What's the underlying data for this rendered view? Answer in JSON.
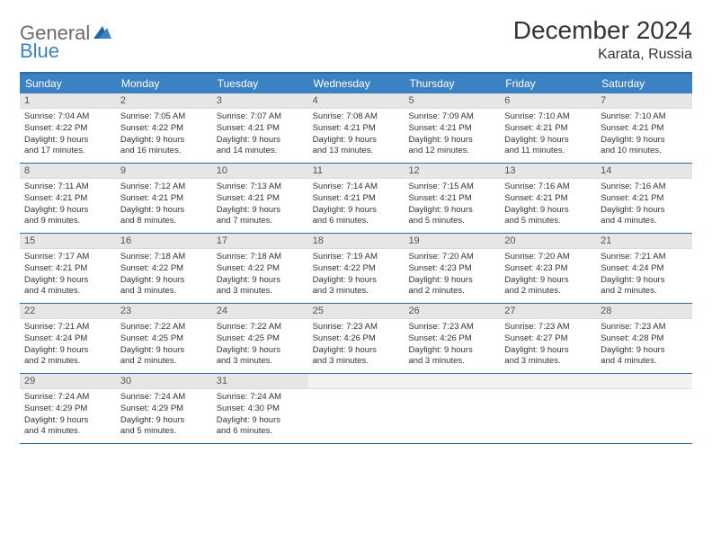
{
  "logo": {
    "text1": "General",
    "text2": "Blue"
  },
  "title": "December 2024",
  "location": "Karata, Russia",
  "colors": {
    "brand_blue": "#3b82c4",
    "rule_blue": "#2e6ca3",
    "daynum_bg": "#e6e6e6",
    "text": "#333333",
    "logo_gray": "#6a6a6a"
  },
  "day_headers": [
    "Sunday",
    "Monday",
    "Tuesday",
    "Wednesday",
    "Thursday",
    "Friday",
    "Saturday"
  ],
  "weeks": [
    [
      {
        "n": "1",
        "sunrise": "Sunrise: 7:04 AM",
        "sunset": "Sunset: 4:22 PM",
        "d1": "Daylight: 9 hours",
        "d2": "and 17 minutes."
      },
      {
        "n": "2",
        "sunrise": "Sunrise: 7:05 AM",
        "sunset": "Sunset: 4:22 PM",
        "d1": "Daylight: 9 hours",
        "d2": "and 16 minutes."
      },
      {
        "n": "3",
        "sunrise": "Sunrise: 7:07 AM",
        "sunset": "Sunset: 4:21 PM",
        "d1": "Daylight: 9 hours",
        "d2": "and 14 minutes."
      },
      {
        "n": "4",
        "sunrise": "Sunrise: 7:08 AM",
        "sunset": "Sunset: 4:21 PM",
        "d1": "Daylight: 9 hours",
        "d2": "and 13 minutes."
      },
      {
        "n": "5",
        "sunrise": "Sunrise: 7:09 AM",
        "sunset": "Sunset: 4:21 PM",
        "d1": "Daylight: 9 hours",
        "d2": "and 12 minutes."
      },
      {
        "n": "6",
        "sunrise": "Sunrise: 7:10 AM",
        "sunset": "Sunset: 4:21 PM",
        "d1": "Daylight: 9 hours",
        "d2": "and 11 minutes."
      },
      {
        "n": "7",
        "sunrise": "Sunrise: 7:10 AM",
        "sunset": "Sunset: 4:21 PM",
        "d1": "Daylight: 9 hours",
        "d2": "and 10 minutes."
      }
    ],
    [
      {
        "n": "8",
        "sunrise": "Sunrise: 7:11 AM",
        "sunset": "Sunset: 4:21 PM",
        "d1": "Daylight: 9 hours",
        "d2": "and 9 minutes."
      },
      {
        "n": "9",
        "sunrise": "Sunrise: 7:12 AM",
        "sunset": "Sunset: 4:21 PM",
        "d1": "Daylight: 9 hours",
        "d2": "and 8 minutes."
      },
      {
        "n": "10",
        "sunrise": "Sunrise: 7:13 AM",
        "sunset": "Sunset: 4:21 PM",
        "d1": "Daylight: 9 hours",
        "d2": "and 7 minutes."
      },
      {
        "n": "11",
        "sunrise": "Sunrise: 7:14 AM",
        "sunset": "Sunset: 4:21 PM",
        "d1": "Daylight: 9 hours",
        "d2": "and 6 minutes."
      },
      {
        "n": "12",
        "sunrise": "Sunrise: 7:15 AM",
        "sunset": "Sunset: 4:21 PM",
        "d1": "Daylight: 9 hours",
        "d2": "and 5 minutes."
      },
      {
        "n": "13",
        "sunrise": "Sunrise: 7:16 AM",
        "sunset": "Sunset: 4:21 PM",
        "d1": "Daylight: 9 hours",
        "d2": "and 5 minutes."
      },
      {
        "n": "14",
        "sunrise": "Sunrise: 7:16 AM",
        "sunset": "Sunset: 4:21 PM",
        "d1": "Daylight: 9 hours",
        "d2": "and 4 minutes."
      }
    ],
    [
      {
        "n": "15",
        "sunrise": "Sunrise: 7:17 AM",
        "sunset": "Sunset: 4:21 PM",
        "d1": "Daylight: 9 hours",
        "d2": "and 4 minutes."
      },
      {
        "n": "16",
        "sunrise": "Sunrise: 7:18 AM",
        "sunset": "Sunset: 4:22 PM",
        "d1": "Daylight: 9 hours",
        "d2": "and 3 minutes."
      },
      {
        "n": "17",
        "sunrise": "Sunrise: 7:18 AM",
        "sunset": "Sunset: 4:22 PM",
        "d1": "Daylight: 9 hours",
        "d2": "and 3 minutes."
      },
      {
        "n": "18",
        "sunrise": "Sunrise: 7:19 AM",
        "sunset": "Sunset: 4:22 PM",
        "d1": "Daylight: 9 hours",
        "d2": "and 3 minutes."
      },
      {
        "n": "19",
        "sunrise": "Sunrise: 7:20 AM",
        "sunset": "Sunset: 4:23 PM",
        "d1": "Daylight: 9 hours",
        "d2": "and 2 minutes."
      },
      {
        "n": "20",
        "sunrise": "Sunrise: 7:20 AM",
        "sunset": "Sunset: 4:23 PM",
        "d1": "Daylight: 9 hours",
        "d2": "and 2 minutes."
      },
      {
        "n": "21",
        "sunrise": "Sunrise: 7:21 AM",
        "sunset": "Sunset: 4:24 PM",
        "d1": "Daylight: 9 hours",
        "d2": "and 2 minutes."
      }
    ],
    [
      {
        "n": "22",
        "sunrise": "Sunrise: 7:21 AM",
        "sunset": "Sunset: 4:24 PM",
        "d1": "Daylight: 9 hours",
        "d2": "and 2 minutes."
      },
      {
        "n": "23",
        "sunrise": "Sunrise: 7:22 AM",
        "sunset": "Sunset: 4:25 PM",
        "d1": "Daylight: 9 hours",
        "d2": "and 2 minutes."
      },
      {
        "n": "24",
        "sunrise": "Sunrise: 7:22 AM",
        "sunset": "Sunset: 4:25 PM",
        "d1": "Daylight: 9 hours",
        "d2": "and 3 minutes."
      },
      {
        "n": "25",
        "sunrise": "Sunrise: 7:23 AM",
        "sunset": "Sunset: 4:26 PM",
        "d1": "Daylight: 9 hours",
        "d2": "and 3 minutes."
      },
      {
        "n": "26",
        "sunrise": "Sunrise: 7:23 AM",
        "sunset": "Sunset: 4:26 PM",
        "d1": "Daylight: 9 hours",
        "d2": "and 3 minutes."
      },
      {
        "n": "27",
        "sunrise": "Sunrise: 7:23 AM",
        "sunset": "Sunset: 4:27 PM",
        "d1": "Daylight: 9 hours",
        "d2": "and 3 minutes."
      },
      {
        "n": "28",
        "sunrise": "Sunrise: 7:23 AM",
        "sunset": "Sunset: 4:28 PM",
        "d1": "Daylight: 9 hours",
        "d2": "and 4 minutes."
      }
    ],
    [
      {
        "n": "29",
        "sunrise": "Sunrise: 7:24 AM",
        "sunset": "Sunset: 4:29 PM",
        "d1": "Daylight: 9 hours",
        "d2": "and 4 minutes."
      },
      {
        "n": "30",
        "sunrise": "Sunrise: 7:24 AM",
        "sunset": "Sunset: 4:29 PM",
        "d1": "Daylight: 9 hours",
        "d2": "and 5 minutes."
      },
      {
        "n": "31",
        "sunrise": "Sunrise: 7:24 AM",
        "sunset": "Sunset: 4:30 PM",
        "d1": "Daylight: 9 hours",
        "d2": "and 6 minutes."
      },
      {
        "empty": true
      },
      {
        "empty": true
      },
      {
        "empty": true
      },
      {
        "empty": true
      }
    ]
  ]
}
